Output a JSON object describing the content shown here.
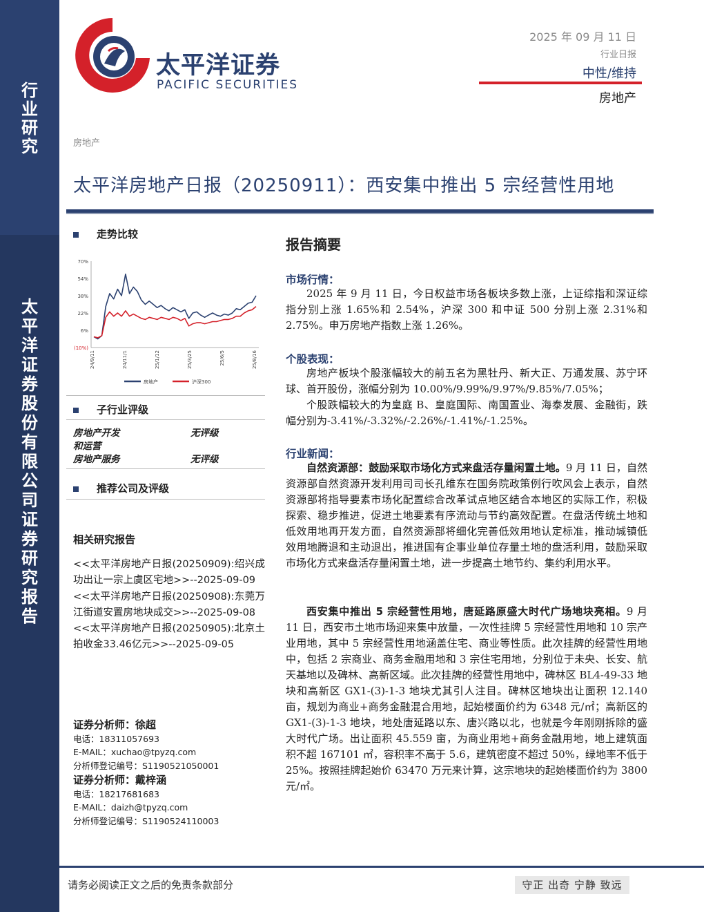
{
  "sidebar": {
    "top_label": [
      "行",
      "业",
      "研",
      "究"
    ],
    "company_vertical": [
      "太",
      "平",
      "洋",
      "证",
      "券",
      "股",
      "份",
      "有",
      "限",
      "公",
      "司",
      "证",
      "券",
      "研",
      "究",
      "报",
      "告"
    ]
  },
  "header": {
    "logo_cn": "太平洋证券",
    "logo_en": "PACIFIC SECURITIES",
    "date": "2025 年 09 月 11 日",
    "report_type": "行业日报",
    "rating": "中性/维持",
    "industry": "房地产",
    "colors": {
      "brand": "#2b4170",
      "accent": "#d4212a"
    }
  },
  "doc": {
    "industry_small": "房地产",
    "title": "太平洋房地产日报（20250911）：西安集中推出 5 宗经营性用地"
  },
  "left": {
    "trend_title": "走势比较",
    "subindustry_title": "子行业评级",
    "subindustries": [
      {
        "name": "房地产开发",
        "rating": "无评级"
      },
      {
        "name": "和运营",
        "rating": ""
      },
      {
        "name": "房地产服务",
        "rating": "无评级"
      }
    ],
    "recommend_title": "推荐公司及评级",
    "related_title": "相关研究报告",
    "related": [
      "<<太平洋房地产日报(20250909):绍兴成功出让一宗上虞区宅地>>--2025-09-09",
      "<<太平洋房地产日报(20250908):东莞万江街道安置房地块成交>>--2025-09-08",
      "<<太平洋房地产日报(20250905):北京土拍收金33.46亿元>>--2025-09-05"
    ],
    "analysts": [
      {
        "title": "证券分析师：徐超",
        "phone": "电话：18311057693",
        "email": "E-MAIL：xuchao@tpyzq.com",
        "reg": "分析师登记编号：S1190521050001"
      },
      {
        "title": "证券分析师：戴梓涵",
        "phone": "电话：18217681683",
        "email": "E-MAIL：daizh@tpyzq.com",
        "reg": "分析师登记编号：S1190524110003"
      }
    ]
  },
  "right": {
    "summary_title": "报告摘要",
    "market_title": "市场行情：",
    "market_text": "2025 年 9 月 11 日，今日权益市场各板块多数上涨，上证综指和深证综指分别上涨 1.65%和 2.54%，沪深 300 和中证 500 分别上涨 2.31%和 2.75%。申万房地产指数上涨 1.26%。",
    "stocks_title": "个股表现：",
    "stocks_text_1": "房地产板块个股涨幅较大的前五名为黑牡丹、新大正、万通发展、苏宁环球、首开股份，涨幅分别为 10.00%/9.99%/9.97%/9.85%/7.05%；",
    "stocks_text_2": "个股跌幅较大的为皇庭 B、皇庭国际、南国置业、海泰发展、金融街，跌幅分别为-3.41%/-3.32%/-2.26%/-1.41%/-1.25%。",
    "news_title": "行业新闻：",
    "news1_head": "自然资源部：鼓励采取市场化方式来盘活存量闲置土地。",
    "news1_body": "9 月 11 日，自然资源部自然资源开发利用司司长孔维东在国务院政策例行吹风会上表示，自然资源部将指导要素市场化配置综合改革试点地区结合本地区的实际工作，积极探索、稳步推进，促进土地要素有序流动与节约高效配置。在盘活传统土地和低效用地再开发方面，自然资源部将细化完善低效用地认定标准，推动城镇低效用地腾退和主动退出，推进国有企事业单位存量土地的盘活利用，鼓励采取市场化方式来盘活存量闲置土地，进一步提高土地节约、集约利用水平。",
    "news2_head": "西安集中推出 5 宗经营性用地，唐延路原盛大时代广场地块亮相。",
    "news2_body": "9 月 11 日，西安市土地市场迎来集中放量，一次性挂牌 5 宗经营性用地和 10 宗产业用地，其中 5 宗经营性用地涵盖住宅、商业等性质。此次挂牌的经营性用地中，包括 2 宗商业、商务金融用地和 3 宗住宅用地，分别位于未央、长安、航天基地以及碑林、高新区域。此次挂牌的经营性用地中，碑林区 BL4-49-33 地块和高新区 GX1-(3)-1-3 地块尤其引人注目。碑林区地块出让面积 12.140 亩，规划为商业+商务金融混合用地，起始楼面价约为 6348 元/㎡；高新区的 GX1-(3)-1-3 地块，地处唐延路以东、唐兴路以北，也就是今年刚刚拆除的盛大时代广场。出让面积 45.559 亩，为商业用地+商务金融用地，地上建筑面积不超 167101 ㎡，容积率不高于 5.6，建筑密度不超过 50%，绿地率不低于 25%。按照挂牌起始价 63470 万元来计算，这宗地块的起始楼面价约为 3800 元/㎡。"
  },
  "footer": {
    "note": "请务必阅读正文之后的免责条款部分",
    "motto": "守正 出奇 宁静 致远"
  },
  "chart_data": {
    "type": "line",
    "title": "",
    "yticks": [
      "70%",
      "54%",
      "38%",
      "22%",
      "6%",
      "(10%)"
    ],
    "ylim": [
      -10,
      70
    ],
    "xticks": [
      "24/9/11",
      "24/11/1",
      "25/1/12",
      "25/3/25",
      "25/6/5",
      "25/8/16"
    ],
    "legend": [
      "房地产",
      "沪深300"
    ],
    "legend_position": "bottom",
    "series": [
      {
        "name": "房地产",
        "color": "#2b4170",
        "values": [
          0,
          -2,
          1,
          28,
          40,
          35,
          44,
          38,
          58,
          40,
          46,
          42,
          34,
          30,
          33,
          30,
          27,
          29,
          26,
          24,
          27,
          25,
          23,
          25,
          17,
          22,
          23,
          20,
          18,
          20,
          22,
          20,
          19,
          21,
          20,
          22,
          26,
          25,
          28,
          31,
          32,
          38
        ]
      },
      {
        "name": "沪深300",
        "color": "#d4212a",
        "values": [
          0,
          -1,
          1,
          18,
          23,
          19,
          22,
          19,
          24,
          19,
          21,
          19,
          17,
          16,
          18,
          17,
          16,
          18,
          17,
          16,
          18,
          17,
          15,
          17,
          10,
          12,
          13,
          13,
          12,
          13,
          14,
          14,
          15,
          16,
          16,
          17,
          19,
          19,
          22,
          24,
          25,
          28
        ]
      }
    ]
  }
}
